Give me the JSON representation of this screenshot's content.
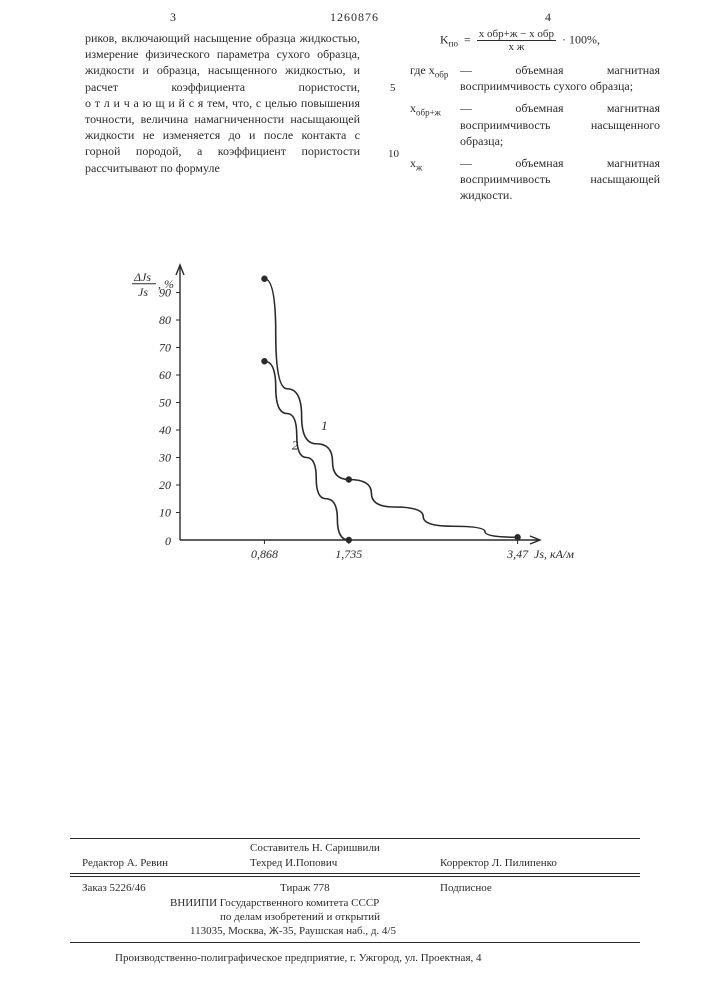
{
  "header": {
    "page_left": "3",
    "page_right": "4",
    "doc_number": "1260876"
  },
  "left_col": {
    "text": "риков, включающий насыщение образца жидкостью, измерение физического параметра сухого образца, жидкости и образца, насыщенного жидкостью, и расчет коэффициента пористости, о т л и ч а ю щ и й с я тем, что, с целью повышения точности, величина намагниченности насыщающей жидкости не изменяется до и после контакта с горной породой, а коэффициент пористости рассчитывают по формуле"
  },
  "right_col": {
    "formula": {
      "lhs": "K",
      "lhs_sub": "по",
      "num": "x обр+ж − x обр",
      "den": "x ж",
      "tail": "· 100%,"
    },
    "defs": [
      {
        "sym": "где x",
        "sub": "обр",
        "txt": "— объемная магнитная восприимчивость сухого образца;"
      },
      {
        "sym": "x",
        "sub": "обр+ж",
        "txt": "— объемная магнитная восприимчивость насыщенного образца;"
      },
      {
        "sym": "x",
        "sub": "ж",
        "txt": "— объемная магнитная восприимчивость насыщающей жидкости."
      }
    ]
  },
  "margin_nums": [
    "5",
    "10"
  ],
  "chart": {
    "type": "line",
    "y_label_top": "ΔJs",
    "y_label_bot": "Js",
    "y_label_unit": ", %",
    "x_label": "Js, кА/м",
    "y_ticks": [
      0,
      10,
      20,
      30,
      40,
      50,
      60,
      70,
      80,
      90
    ],
    "x_ticks": [
      {
        "val": 0.868,
        "label": "0,868"
      },
      {
        "val": 1.735,
        "label": "1,735"
      },
      {
        "val": 3.47,
        "label": "3,47"
      }
    ],
    "series": [
      {
        "label": "1",
        "points": [
          {
            "x": 0.868,
            "y": 95
          },
          {
            "x": 1.1,
            "y": 55
          },
          {
            "x": 1.4,
            "y": 35
          },
          {
            "x": 1.735,
            "y": 22
          },
          {
            "x": 2.2,
            "y": 12
          },
          {
            "x": 2.8,
            "y": 5
          },
          {
            "x": 3.47,
            "y": 1
          }
        ],
        "markers": [
          {
            "x": 0.868,
            "y": 95
          },
          {
            "x": 1.735,
            "y": 22
          },
          {
            "x": 3.47,
            "y": 1
          }
        ],
        "label_pos": {
          "x": 1.45,
          "y": 40
        }
      },
      {
        "label": "2",
        "points": [
          {
            "x": 0.868,
            "y": 65
          },
          {
            "x": 1.1,
            "y": 46
          },
          {
            "x": 1.3,
            "y": 30
          },
          {
            "x": 1.5,
            "y": 15
          },
          {
            "x": 1.735,
            "y": 0
          }
        ],
        "markers": [
          {
            "x": 0.868,
            "y": 65
          },
          {
            "x": 1.735,
            "y": 0
          }
        ],
        "label_pos": {
          "x": 1.15,
          "y": 33
        }
      }
    ],
    "axis_color": "#2a2a2a",
    "line_color": "#2a2a2a",
    "line_width": 1.6,
    "marker_radius": 3.2,
    "tick_fontsize": 12,
    "origin_label": "0"
  },
  "footer": {
    "compiler": "Составитель Н. Саришвили",
    "editor": "Редактор А. Ревин",
    "techred": "Техред И.Попович",
    "corrector": "Корректор Л. Пилипенко",
    "order": "Заказ 5226/46",
    "tirazh": "Тираж 778",
    "subscript": "Подписное",
    "org1": "ВНИИПИ Государственного комитета СССР",
    "org2": "по делам изобретений и открытий",
    "addr1": "113035, Москва, Ж-35, Раушская наб., д. 4/5",
    "addr2": "Производственно-полиграфическое предприятие, г. Ужгород, ул. Проектная, 4"
  }
}
